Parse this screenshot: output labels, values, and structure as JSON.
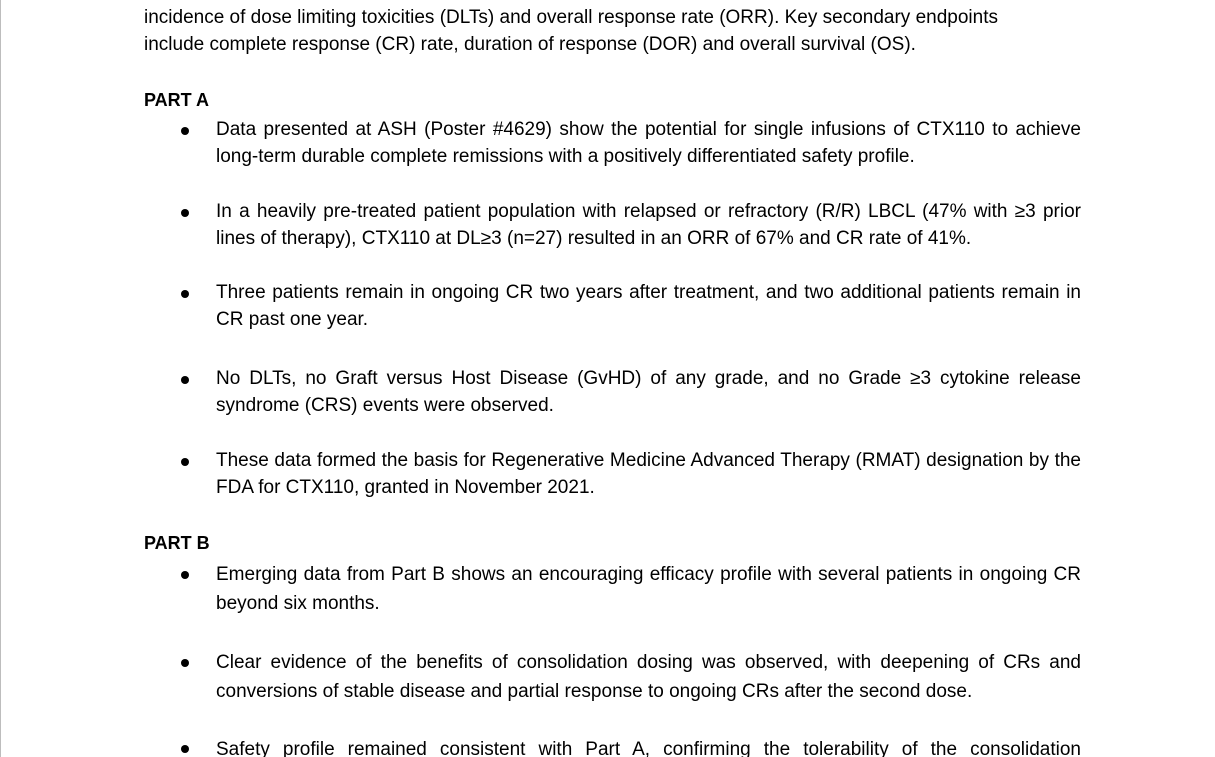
{
  "intro": {
    "line1": "incidence of dose limiting toxicities (DLTs) and overall response rate (ORR). Key secondary endpoints",
    "line2": "include complete response (CR) rate, duration of response (DOR) and overall survival (OS)."
  },
  "part_a": {
    "heading": "PART A",
    "bullets": [
      "Data presented at ASH (Poster #4629) show the potential for single infusions of CTX110 to achieve long-term durable complete remissions with a positively differentiated safety profile.",
      "In a heavily pre-treated patient population with relapsed or refractory (R/R) LBCL (47% with ≥3 prior lines of therapy), CTX110 at DL≥3 (n=27) resulted in an ORR of 67% and CR rate of 41%.",
      "Three patients remain in ongoing CR two years after treatment, and two additional patients remain in CR past one year.",
      "No DLTs, no Graft versus Host Disease (GvHD) of any grade, and no Grade ≥3 cytokine release syndrome (CRS) events were observed.",
      "These data formed the basis for Regenerative Medicine Advanced Therapy (RMAT) designation by the FDA for CTX110, granted in November 2021."
    ]
  },
  "part_b": {
    "heading": "PART B",
    "bullets": [
      "Emerging data from Part B shows an encouraging efficacy profile with several patients in ongoing CR beyond six months.",
      "Clear evidence of the benefits of consolidation dosing was observed, with deepening of CRs and conversions of stable disease and partial response to ongoing CRs after the second dose.",
      "Safety profile remained consistent with Part A, confirming the tolerability of the consolidation"
    ]
  }
}
